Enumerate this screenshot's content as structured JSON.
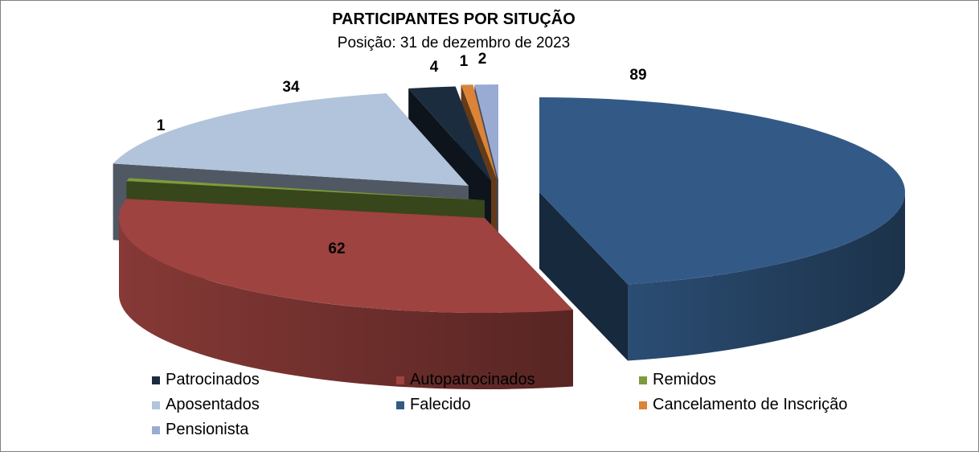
{
  "chart_data": {
    "type": "pie",
    "title": "PARTICIPANTES POR SITUÇÃO",
    "subtitle": "Posição: 31 de dezembro  de 2023",
    "legend_position": "bottom",
    "three_d": true,
    "exploded": true,
    "slices": [
      {
        "name": "Falecido",
        "value": 89,
        "label": "89",
        "color": "#335A87"
      },
      {
        "name": "Autopatrocinados",
        "value": 62,
        "label": "62",
        "color": "#9E4340"
      },
      {
        "name": "Remidos",
        "value": 1,
        "label": "1",
        "color": "#7D9B3E"
      },
      {
        "name": "Aposentados",
        "value": 34,
        "label": "34",
        "color": "#B1C4DB"
      },
      {
        "name": "Patrocinados",
        "value": 4,
        "label": "4",
        "color": "#1C2C3F"
      },
      {
        "name": "Cancelamento de Inscrição",
        "value": 1,
        "label": "1",
        "color": "#DB8438"
      },
      {
        "name": "Pensionista",
        "value": 2,
        "label": "2",
        "color": "#9AABD3"
      }
    ],
    "legend": [
      {
        "name": "Patrocinados",
        "color": "#1C2C3F"
      },
      {
        "name": "Autopatrocinados",
        "color": "#9E4340"
      },
      {
        "name": "Remidos",
        "color": "#7D9B3E"
      },
      {
        "name": "Aposentados",
        "color": "#B1C4DB"
      },
      {
        "name": "Falecido",
        "color": "#335A87"
      },
      {
        "name": "Cancelamento de Inscrição",
        "color": "#DB8438"
      },
      {
        "name": "Pensionista",
        "color": "#9AABD3"
      }
    ]
  }
}
